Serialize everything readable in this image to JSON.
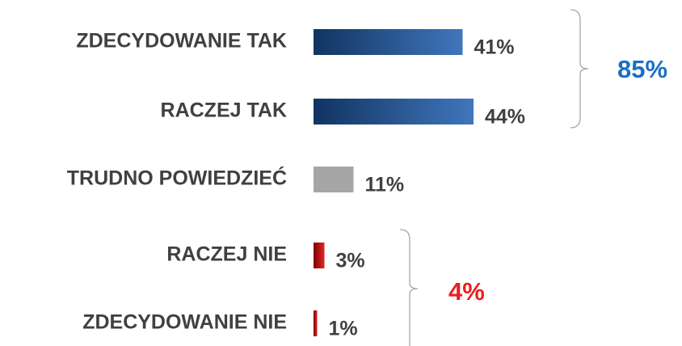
{
  "chart_data": {
    "type": "bar",
    "orientation": "horizontal",
    "categories": [
      "ZDECYDOWANIE TAK",
      "RACZEJ TAK",
      "TRUDNO POWIEDZIEĆ",
      "RACZEJ NIE",
      "ZDECYDOWANIE NIE"
    ],
    "values": [
      41,
      44,
      11,
      3,
      1
    ],
    "value_labels": [
      "41%",
      "44%",
      "11%",
      "3%",
      "1%"
    ],
    "colors": [
      "#1e5eb0",
      "#1e5eb0",
      "#a6a6a6",
      "#e00000",
      "#e00000"
    ],
    "xlim": [
      0,
      100
    ],
    "annotations": [
      {
        "text": "85%",
        "color": "#1a6fc4"
      },
      {
        "text": "4%",
        "color": "#ee1c1c"
      }
    ]
  }
}
